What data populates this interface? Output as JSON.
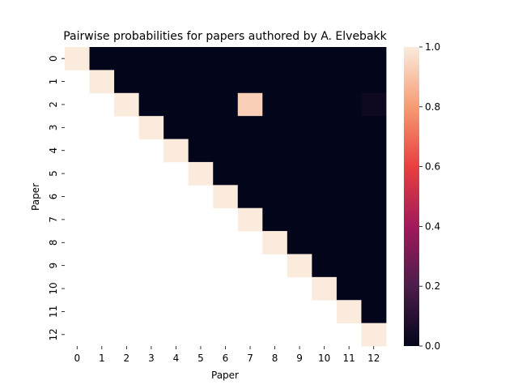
{
  "chart_data": {
    "type": "heatmap",
    "title": "Pairwise probabilities for papers authored by A. Elvebakk",
    "xlabel": "Paper",
    "ylabel": "Paper",
    "x_categories": [
      "0",
      "1",
      "2",
      "3",
      "4",
      "5",
      "6",
      "7",
      "8",
      "9",
      "10",
      "11",
      "12"
    ],
    "y_categories": [
      "0",
      "1",
      "2",
      "3",
      "4",
      "5",
      "6",
      "7",
      "8",
      "9",
      "10",
      "11",
      "12"
    ],
    "mask": "lower-triangle",
    "values": [
      [
        1.0,
        0.0,
        0.0,
        0.0,
        0.0,
        0.0,
        0.0,
        0.0,
        0.0,
        0.0,
        0.0,
        0.0,
        0.0
      ],
      [
        null,
        1.0,
        0.0,
        0.0,
        0.0,
        0.0,
        0.0,
        0.0,
        0.0,
        0.0,
        0.0,
        0.0,
        0.0
      ],
      [
        null,
        null,
        1.0,
        0.0,
        0.0,
        0.0,
        0.0,
        0.93,
        0.0,
        0.0,
        0.0,
        0.0,
        0.03
      ],
      [
        null,
        null,
        null,
        1.0,
        0.0,
        0.0,
        0.0,
        0.0,
        0.0,
        0.0,
        0.0,
        0.0,
        0.0
      ],
      [
        null,
        null,
        null,
        null,
        1.0,
        0.0,
        0.0,
        0.0,
        0.0,
        0.0,
        0.0,
        0.0,
        0.0
      ],
      [
        null,
        null,
        null,
        null,
        null,
        1.0,
        0.0,
        0.0,
        0.0,
        0.0,
        0.0,
        0.0,
        0.0
      ],
      [
        null,
        null,
        null,
        null,
        null,
        null,
        1.0,
        0.0,
        0.0,
        0.0,
        0.0,
        0.0,
        0.0
      ],
      [
        null,
        null,
        null,
        null,
        null,
        null,
        null,
        1.0,
        0.0,
        0.0,
        0.0,
        0.0,
        0.0
      ],
      [
        null,
        null,
        null,
        null,
        null,
        null,
        null,
        null,
        1.0,
        0.0,
        0.0,
        0.0,
        0.0
      ],
      [
        null,
        null,
        null,
        null,
        null,
        null,
        null,
        null,
        null,
        1.0,
        0.0,
        0.0,
        0.0
      ],
      [
        null,
        null,
        null,
        null,
        null,
        null,
        null,
        null,
        null,
        null,
        1.0,
        0.0,
        0.0
      ],
      [
        null,
        null,
        null,
        null,
        null,
        null,
        null,
        null,
        null,
        null,
        null,
        1.0,
        0.0
      ],
      [
        null,
        null,
        null,
        null,
        null,
        null,
        null,
        null,
        null,
        null,
        null,
        null,
        1.0
      ]
    ],
    "colorbar": {
      "range": [
        0.0,
        1.0
      ],
      "ticks": [
        "0.0",
        "0.2",
        "0.4",
        "0.6",
        "0.8",
        "1.0"
      ]
    },
    "colormap": [
      "#03051a",
      "#4c1d4b",
      "#a11a5b",
      "#e83f3f",
      "#f69c73",
      "#faebdd"
    ]
  }
}
